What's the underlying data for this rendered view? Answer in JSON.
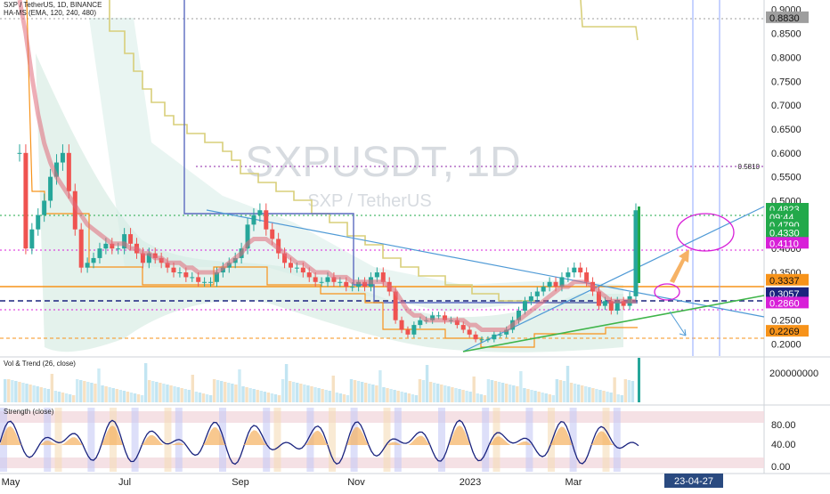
{
  "symbol_line": "SXP / TetherUS, 1D, BINANCE",
  "indicator_line": "HA-MS (EMA, 120, 240, 480)",
  "watermark_symbol": "SXPUSDT, 1D",
  "watermark_name": "SXP / TetherUS",
  "vol_legend": "Vol & Trend (26, close)",
  "strength_legend": "Strength (close)",
  "date_tag": "23-04-27",
  "colors": {
    "accent_blue": "#2962ff",
    "orange": "#f7931a",
    "green": "#22a94a",
    "magenta": "#d81fd8",
    "navy": "#1a237e"
  },
  "chart_data": {
    "type": "line",
    "ylim": [
      0.175,
      0.92
    ],
    "log_scale": false,
    "grid": false,
    "y_ticks": [
      "0.9000",
      "0.8500",
      "0.8000",
      "0.7500",
      "0.7000",
      "0.6500",
      "0.6000",
      "0.5500",
      "0.5000",
      "0.4500",
      "0.4000",
      "0.3500",
      "0.3000",
      "0.2500",
      "0.2000"
    ],
    "x_ticks": [
      "May",
      "Jul",
      "Sep",
      "Nov",
      "2023",
      "Mar"
    ],
    "price_tags": [
      {
        "label": "0.8830",
        "value": 0.883,
        "bg": "#9e9e9e",
        "fg": "#111111"
      },
      {
        "label": "0.4823",
        "value": 0.4823,
        "bg": "#22a94a",
        "fg": "#ffffff"
      },
      {
        "label": "09:44",
        "value": 0.466,
        "bg": "#22a94a",
        "fg": "#ffffff"
      },
      {
        "label": "0.4790",
        "value": 0.449,
        "bg": "#22a94a",
        "fg": "#ffffff"
      },
      {
        "label": "0.4330",
        "value": 0.433,
        "bg": "#22a94a",
        "fg": "#ffffff"
      },
      {
        "label": "0.4110",
        "value": 0.411,
        "bg": "#d81fd8",
        "fg": "#ffffff"
      },
      {
        "label": "0.3337",
        "value": 0.3337,
        "bg": "#f7931a",
        "fg": "#111111"
      },
      {
        "label": "0.3057",
        "value": 0.3057,
        "bg": "#1a237e",
        "fg": "#ffffff"
      },
      {
        "label": "0.2860",
        "value": 0.286,
        "bg": "#d81fd8",
        "fg": "#ffffff"
      },
      {
        "label": "0.2269",
        "value": 0.2269,
        "bg": "#f7931a",
        "fg": "#111111"
      }
    ],
    "annotations": [
      {
        "label": "0.5810",
        "value": 0.581
      }
    ],
    "series": [
      {
        "values": [
          0.6,
          0.4,
          0.44,
          0.47,
          0.5,
          0.55,
          0.58,
          0.6,
          0.52,
          0.44,
          0.36,
          0.37,
          0.38,
          0.4,
          0.41,
          0.4,
          0.4,
          0.43,
          0.41,
          0.39,
          0.37,
          0.39,
          0.38,
          0.37,
          0.36,
          0.35,
          0.35,
          0.34,
          0.34,
          0.33,
          0.33,
          0.33,
          0.35,
          0.36,
          0.37,
          0.38,
          0.4,
          0.45,
          0.47,
          0.48,
          0.44,
          0.42,
          0.39,
          0.37,
          0.36,
          0.36,
          0.35,
          0.34,
          0.33,
          0.33,
          0.34,
          0.33,
          0.33,
          0.32,
          0.32,
          0.33,
          0.32,
          0.34,
          0.35,
          0.33,
          0.31,
          0.25,
          0.23,
          0.22,
          0.24,
          0.25,
          0.25,
          0.26,
          0.26,
          0.25,
          0.25,
          0.24,
          0.23,
          0.22,
          0.21,
          0.21,
          0.21,
          0.22,
          0.22,
          0.23,
          0.25,
          0.27,
          0.29,
          0.3,
          0.31,
          0.32,
          0.33,
          0.32,
          0.34,
          0.35,
          0.36,
          0.35,
          0.33,
          0.31,
          0.28,
          0.29,
          0.27,
          0.29,
          0.28,
          0.3,
          0.48
        ]
      },
      {
        "values": [
          0.92,
          0.85,
          0.76,
          0.68,
          0.62,
          0.58,
          0.55,
          0.53,
          0.51,
          0.49,
          0.47,
          0.45,
          0.44,
          0.43,
          0.42,
          0.41,
          0.41,
          0.41,
          0.4,
          0.4,
          0.39,
          0.39,
          0.38,
          0.38,
          0.37,
          0.37,
          0.37,
          0.36,
          0.36,
          0.35,
          0.35,
          0.35,
          0.35,
          0.36,
          0.37,
          0.38,
          0.39,
          0.41,
          0.42,
          0.42,
          0.42,
          0.41,
          0.4,
          0.39,
          0.38,
          0.37,
          0.37,
          0.36,
          0.35,
          0.35,
          0.35,
          0.34,
          0.34,
          0.34,
          0.33,
          0.33,
          0.33,
          0.33,
          0.33,
          0.33,
          0.32,
          0.31,
          0.29,
          0.27,
          0.26,
          0.26,
          0.25,
          0.25,
          0.25,
          0.25,
          0.25,
          0.25,
          0.25,
          0.24,
          0.24,
          0.23,
          0.23,
          0.23,
          0.23,
          0.23,
          0.24,
          0.25,
          0.26,
          0.27,
          0.28,
          0.29,
          0.3,
          0.31,
          0.32,
          0.32,
          0.33,
          0.33,
          0.33,
          0.32,
          0.31,
          0.3,
          0.29,
          0.29,
          0.29,
          0.29,
          0.29
        ]
      }
    ]
  }
}
